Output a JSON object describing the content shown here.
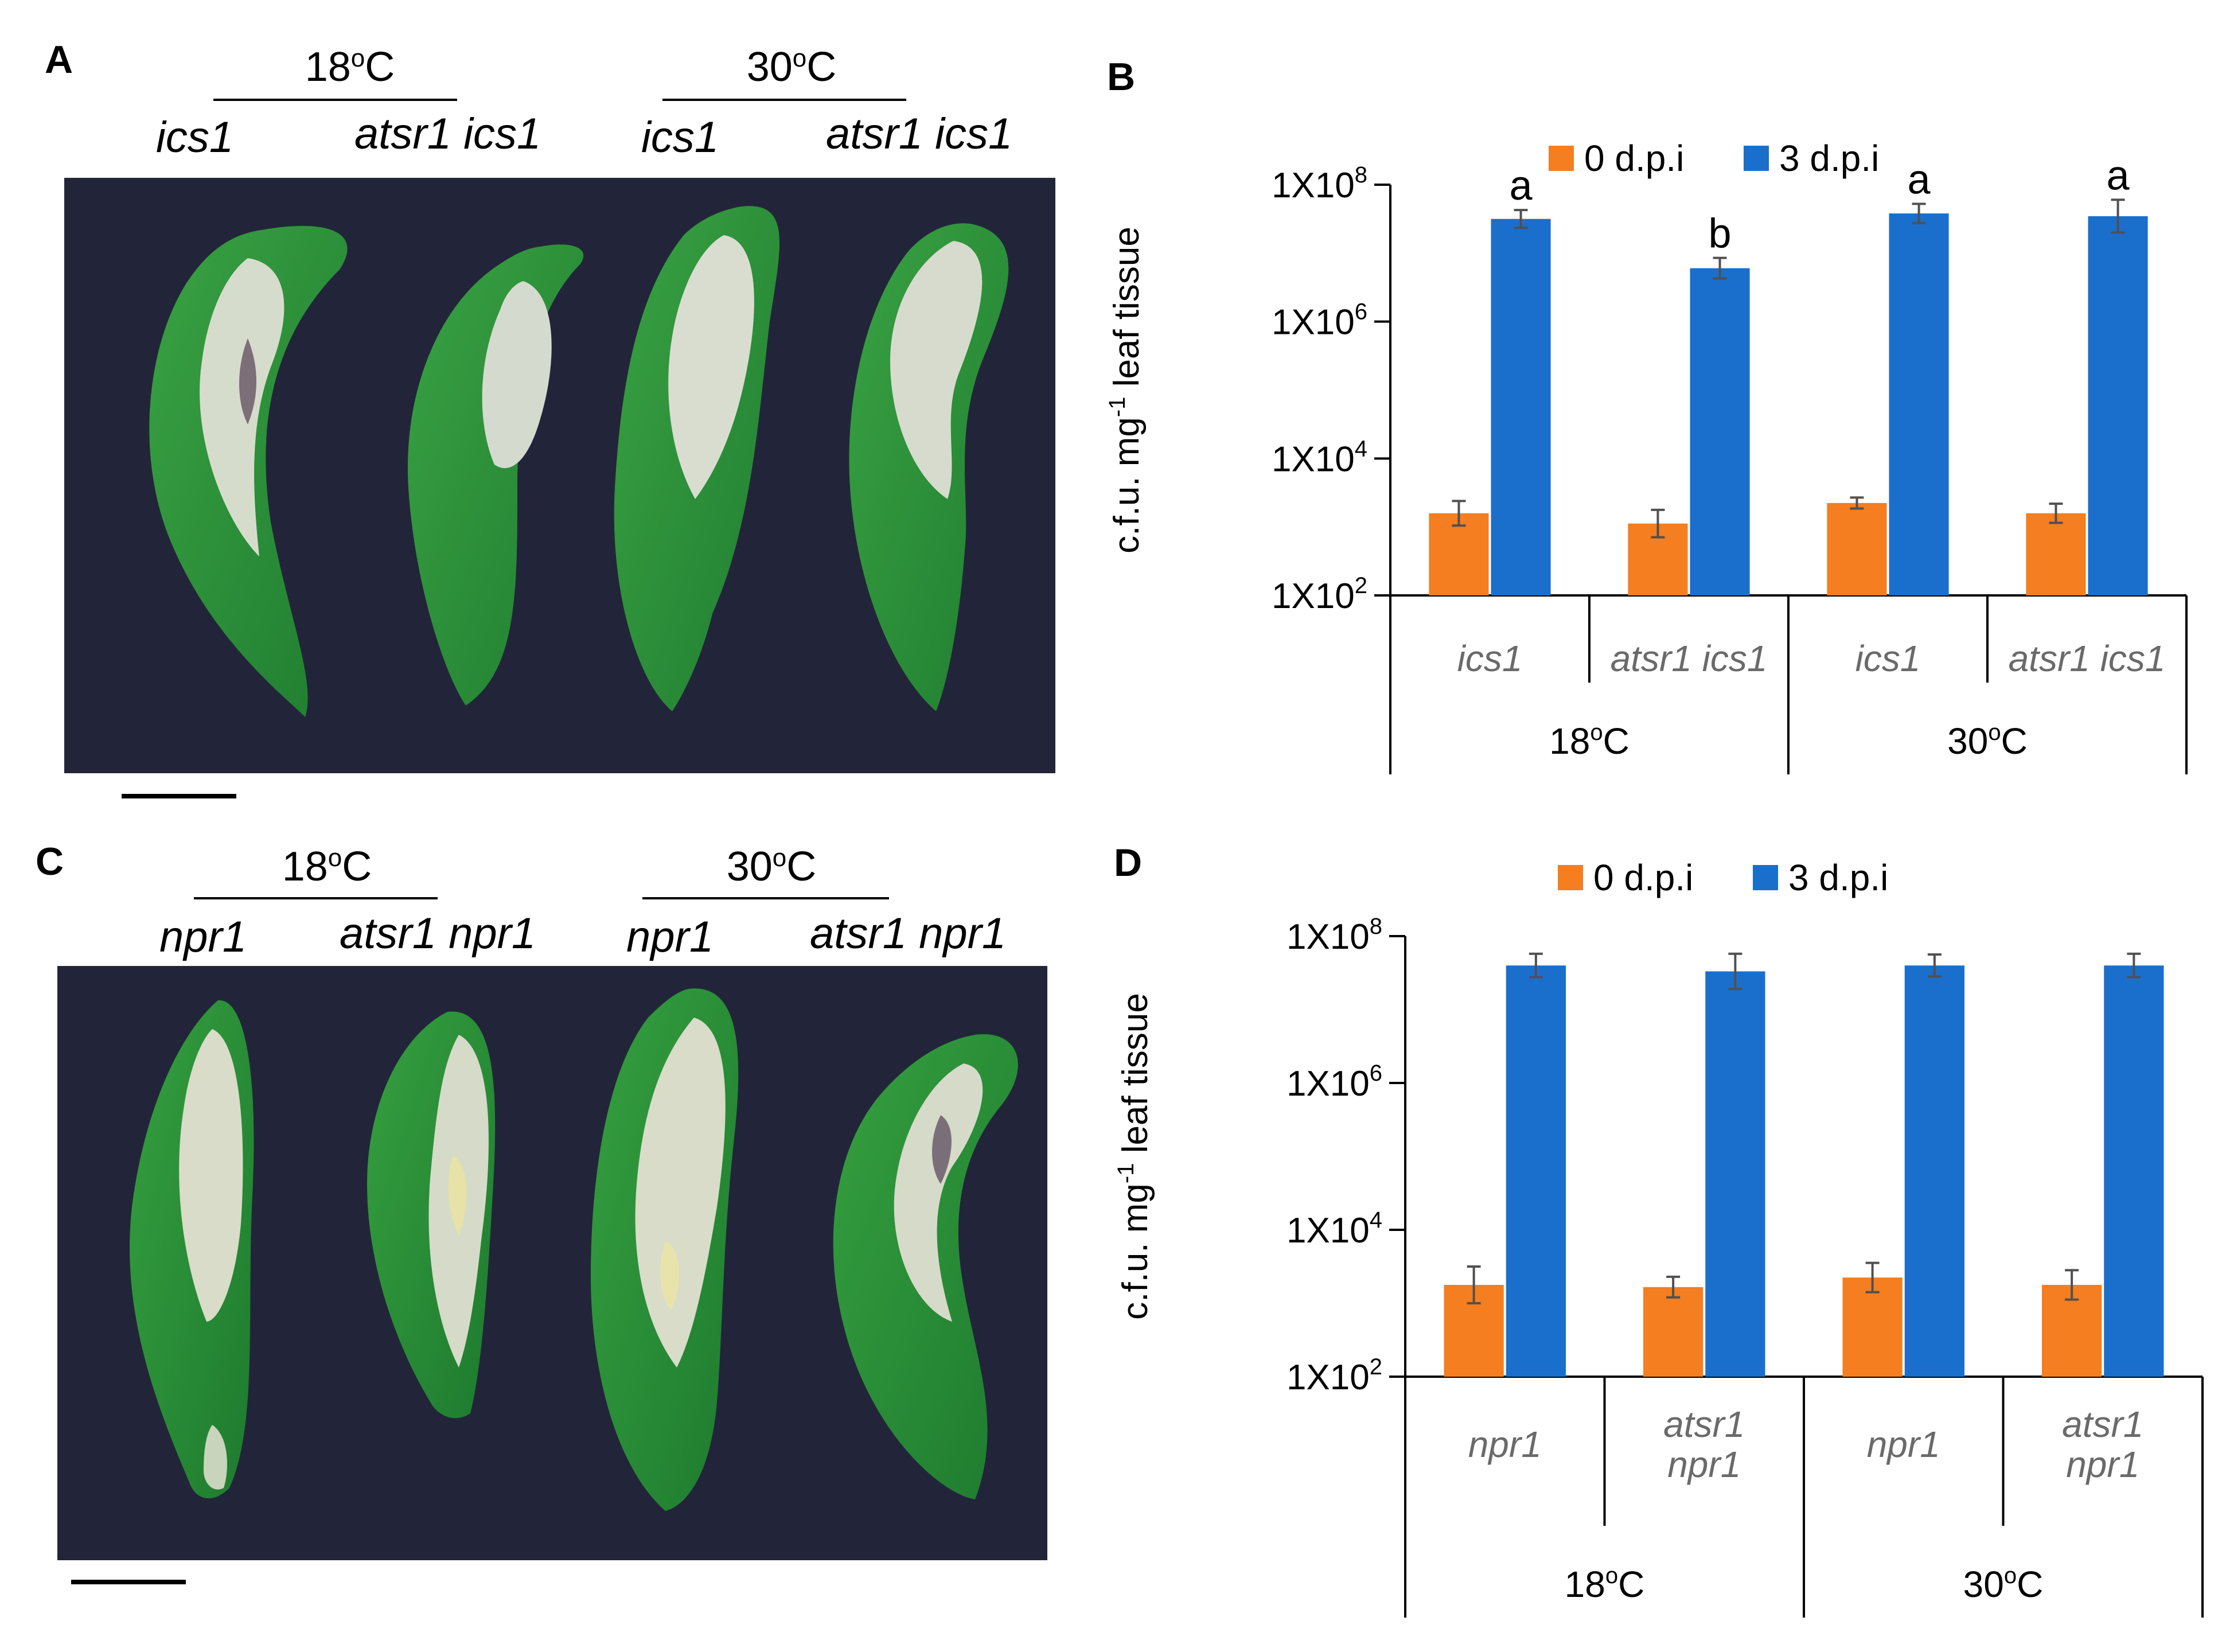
{
  "panels": {
    "A": {
      "letter": "A",
      "temps": [
        "18oC",
        "30oC"
      ],
      "genotypes": [
        "ics1",
        "atsr1 ics1",
        "ics1",
        "atsr1 ics1"
      ],
      "photo": "leaf-photo"
    },
    "C": {
      "letter": "C",
      "temps": [
        "18oC",
        "30oC"
      ],
      "genotypes": [
        "npr1",
        "atsr1 npr1",
        "npr1",
        "atsr1 npr1"
      ],
      "photo": "leaf-photo"
    }
  },
  "colors": {
    "series0": "#f47e20",
    "series1": "#1a6fcc",
    "error": "#505050",
    "axis": "#000000",
    "category_text": "#6a6a6a"
  },
  "chart_data": [
    {
      "panel": "B",
      "type": "bar",
      "log_scale": true,
      "ylabel": "c.f.u. mg-1 leaf tissue",
      "ylim_log10": [
        2,
        8
      ],
      "yticks": [
        {
          "log10": 2,
          "label": "1X102"
        },
        {
          "log10": 4,
          "label": "1X104"
        },
        {
          "log10": 6,
          "label": "1X106"
        },
        {
          "log10": 8,
          "label": "1X108"
        }
      ],
      "legend": [
        "0 d.p.i",
        "3 d.p.i"
      ],
      "categories": [
        [
          "ics1"
        ],
        [
          "atsr1 ics1"
        ],
        [
          "ics1"
        ],
        [
          "atsr1 ics1"
        ]
      ],
      "groups": [
        "18oC",
        "30oC"
      ],
      "series": [
        {
          "name": "0 d.p.i",
          "log10": [
            3.2,
            3.05,
            3.35,
            3.2
          ],
          "err": [
            0.18,
            0.2,
            0.08,
            0.14
          ]
        },
        {
          "name": "3 d.p.i",
          "log10": [
            7.5,
            6.78,
            7.58,
            7.54
          ],
          "err": [
            0.13,
            0.15,
            0.14,
            0.24
          ]
        }
      ],
      "annotations": [
        "a",
        "b",
        "a",
        "a"
      ]
    },
    {
      "panel": "D",
      "type": "bar",
      "log_scale": true,
      "ylabel": "c.f.u. mg-1 leaf tissue",
      "ylim_log10": [
        2,
        8
      ],
      "yticks": [
        {
          "log10": 2,
          "label": "1X102"
        },
        {
          "log10": 4,
          "label": "1X104"
        },
        {
          "log10": 6,
          "label": "1X106"
        },
        {
          "log10": 8,
          "label": "1X108"
        }
      ],
      "legend": [
        "0 d.p.i",
        "3 d.p.i"
      ],
      "categories": [
        [
          "npr1"
        ],
        [
          "atsr1",
          "npr1"
        ],
        [
          "npr1"
        ],
        [
          "atsr1",
          "npr1"
        ]
      ],
      "groups": [
        "18oC",
        "30oC"
      ],
      "series": [
        {
          "name": "0 d.p.i",
          "log10": [
            3.25,
            3.22,
            3.35,
            3.25
          ],
          "err": [
            0.25,
            0.14,
            0.2,
            0.2
          ]
        },
        {
          "name": "3 d.p.i",
          "log10": [
            7.6,
            7.52,
            7.6,
            7.6
          ],
          "err": [
            0.16,
            0.24,
            0.15,
            0.16
          ]
        }
      ],
      "annotations": []
    }
  ]
}
